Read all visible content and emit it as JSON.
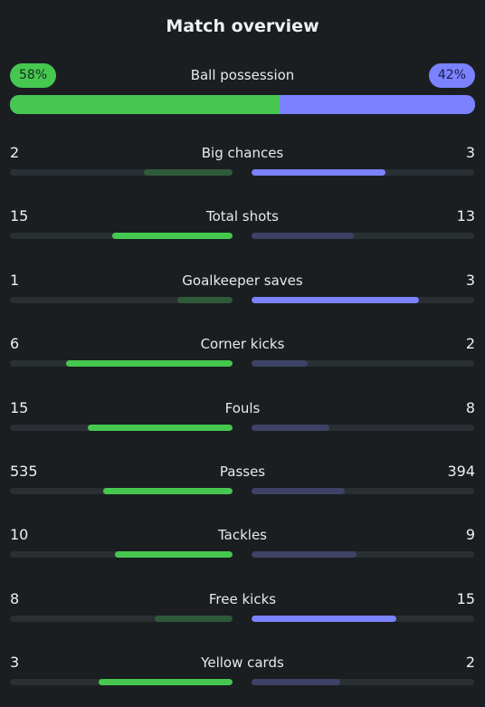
{
  "title": "Match overview",
  "colors": {
    "home_strong": "#46c850",
    "home_weak": "#2f5a3a",
    "away_strong": "#7b82ff",
    "away_weak": "#3d4266",
    "track": "#2a2f33"
  },
  "possession": {
    "label": "Ball possession",
    "home_text": "58%",
    "away_text": "42%",
    "home_fraction": 0.58,
    "away_fraction": 0.42
  },
  "stats": [
    {
      "label": "Big chances",
      "home": "2",
      "away": "3",
      "home_fill": 0.4,
      "away_fill": 0.6
    },
    {
      "label": "Total shots",
      "home": "15",
      "away": "13",
      "home_fill": 0.54,
      "away_fill": 0.46
    },
    {
      "label": "Goalkeeper saves",
      "home": "1",
      "away": "3",
      "home_fill": 0.25,
      "away_fill": 0.75
    },
    {
      "label": "Corner kicks",
      "home": "6",
      "away": "2",
      "home_fill": 0.75,
      "away_fill": 0.25
    },
    {
      "label": "Fouls",
      "home": "15",
      "away": "8",
      "home_fill": 0.65,
      "away_fill": 0.35
    },
    {
      "label": "Passes",
      "home": "535",
      "away": "394",
      "home_fill": 0.58,
      "away_fill": 0.42
    },
    {
      "label": "Tackles",
      "home": "10",
      "away": "9",
      "home_fill": 0.53,
      "away_fill": 0.47
    },
    {
      "label": "Free kicks",
      "home": "8",
      "away": "15",
      "home_fill": 0.35,
      "away_fill": 0.65
    },
    {
      "label": "Yellow cards",
      "home": "3",
      "away": "2",
      "home_fill": 0.6,
      "away_fill": 0.4
    }
  ]
}
